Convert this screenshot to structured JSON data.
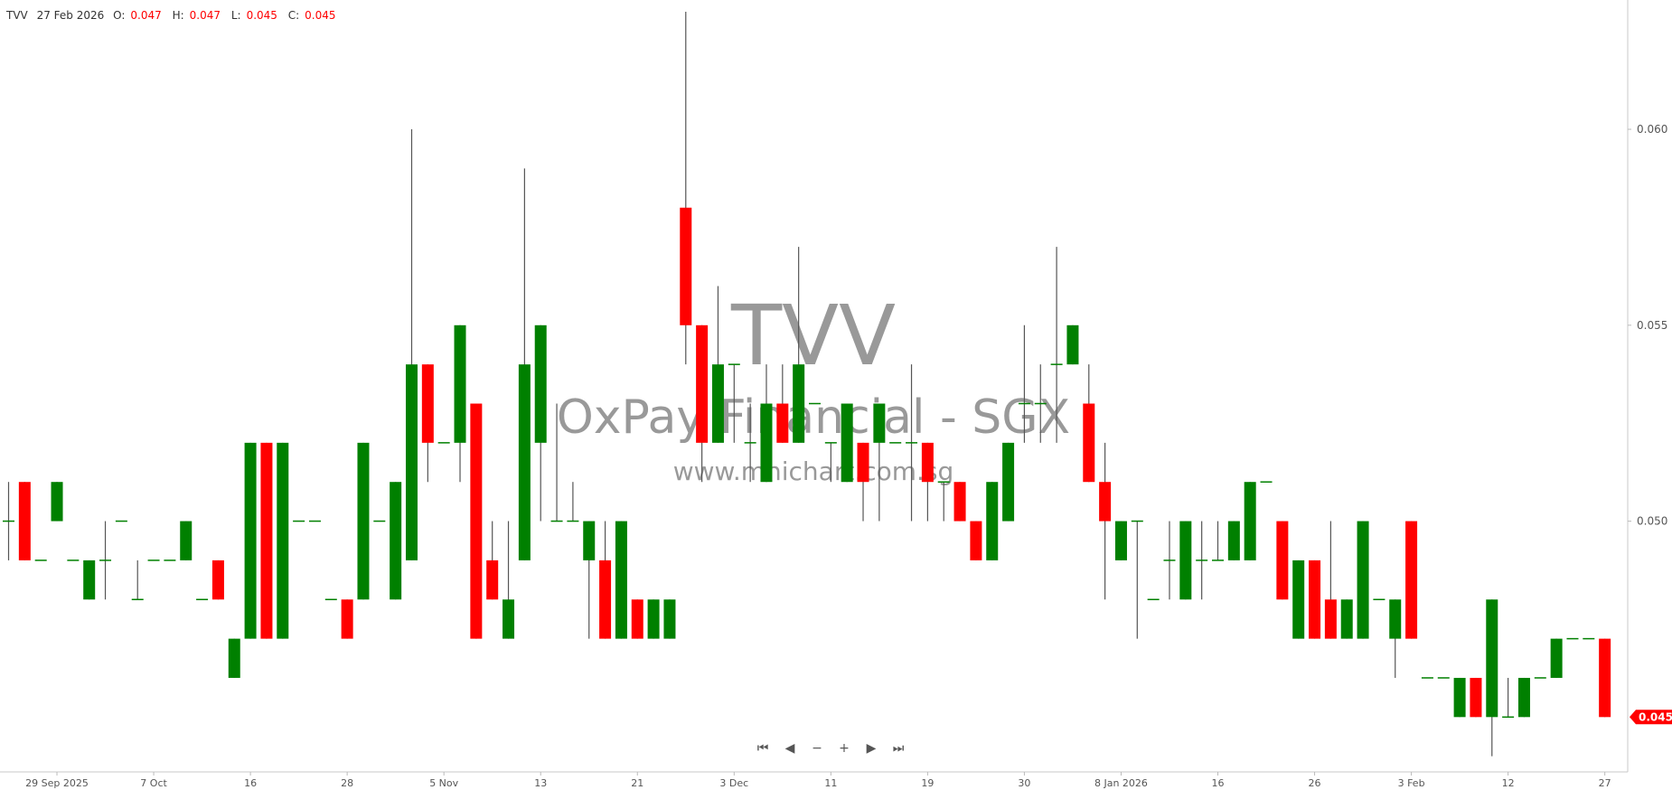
{
  "header": {
    "symbol": "TVV",
    "date": "27 Feb 2026",
    "o_label": "O:",
    "o": "0.047",
    "h_label": "H:",
    "h": "0.047",
    "l_label": "L:",
    "l": "0.045",
    "c_label": "C:",
    "c": "0.045"
  },
  "watermark": {
    "code": "TVV",
    "name": "OxPay Financial - SGX",
    "site": "www.mnichart.com.sg"
  },
  "nav": [
    {
      "icon": "skip-to-start-icon",
      "glyph": "⏮"
    },
    {
      "icon": "scroll-left-icon",
      "glyph": "◀"
    },
    {
      "icon": "zoom-out-icon",
      "glyph": "−"
    },
    {
      "icon": "zoom-in-icon",
      "glyph": "+"
    },
    {
      "icon": "scroll-right-icon",
      "glyph": "▶"
    },
    {
      "icon": "skip-to-end-icon",
      "glyph": "⏭"
    }
  ],
  "colors": {
    "up": "#008000",
    "down": "#ff0000",
    "wick": "#555555",
    "watermark": "#999999",
    "last_price": "#ff0000"
  },
  "chart_data": {
    "type": "candlestick",
    "ylim": [
      0.0436,
      0.0633
    ],
    "yticks": [
      "0.050",
      "0.055",
      "0.060"
    ],
    "last_price_label": "0.045",
    "grid": false,
    "xticks": [
      {
        "index": 3,
        "label": "29 Sep 2025"
      },
      {
        "index": 9,
        "label": "7 Oct"
      },
      {
        "index": 15,
        "label": "16"
      },
      {
        "index": 21,
        "label": "28"
      },
      {
        "index": 27,
        "label": "5 Nov"
      },
      {
        "index": 33,
        "label": "13"
      },
      {
        "index": 39,
        "label": "21"
      },
      {
        "index": 45,
        "label": "3 Dec"
      },
      {
        "index": 51,
        "label": "11"
      },
      {
        "index": 57,
        "label": "19"
      },
      {
        "index": 63,
        "label": "30"
      },
      {
        "index": 69,
        "label": "8 Jan 2026"
      },
      {
        "index": 75,
        "label": "16"
      },
      {
        "index": 81,
        "label": "26"
      },
      {
        "index": 87,
        "label": "3 Feb"
      },
      {
        "index": 93,
        "label": "12"
      },
      {
        "index": 99,
        "label": "27"
      }
    ],
    "ohlc": [
      [
        0.05,
        0.051,
        0.049,
        0.05
      ],
      [
        0.051,
        0.051,
        0.049,
        0.049
      ],
      [
        0.049,
        0.049,
        0.049,
        0.049
      ],
      [
        0.05,
        0.051,
        0.05,
        0.051
      ],
      [
        0.049,
        0.049,
        0.049,
        0.049
      ],
      [
        0.048,
        0.049,
        0.048,
        0.049
      ],
      [
        0.049,
        0.05,
        0.048,
        0.049
      ],
      [
        0.05,
        0.05,
        0.05,
        0.05
      ],
      [
        0.048,
        0.049,
        0.048,
        0.048
      ],
      [
        0.049,
        0.049,
        0.049,
        0.049
      ],
      [
        0.049,
        0.049,
        0.049,
        0.049
      ],
      [
        0.049,
        0.05,
        0.049,
        0.05
      ],
      [
        0.048,
        0.048,
        0.048,
        0.048
      ],
      [
        0.049,
        0.049,
        0.048,
        0.048
      ],
      [
        0.046,
        0.047,
        0.046,
        0.047
      ],
      [
        0.047,
        0.052,
        0.047,
        0.052
      ],
      [
        0.052,
        0.052,
        0.047,
        0.047
      ],
      [
        0.047,
        0.052,
        0.047,
        0.052
      ],
      [
        0.05,
        0.05,
        0.05,
        0.05
      ],
      [
        0.05,
        0.05,
        0.05,
        0.05
      ],
      [
        0.048,
        0.048,
        0.048,
        0.048
      ],
      [
        0.048,
        0.048,
        0.047,
        0.047
      ],
      [
        0.048,
        0.052,
        0.048,
        0.052
      ],
      [
        0.05,
        0.05,
        0.05,
        0.05
      ],
      [
        0.048,
        0.051,
        0.048,
        0.051
      ],
      [
        0.049,
        0.06,
        0.049,
        0.054
      ],
      [
        0.054,
        0.054,
        0.051,
        0.052
      ],
      [
        0.052,
        0.052,
        0.052,
        0.052
      ],
      [
        0.052,
        0.055,
        0.051,
        0.055
      ],
      [
        0.053,
        0.053,
        0.047,
        0.047
      ],
      [
        0.049,
        0.05,
        0.048,
        0.048
      ],
      [
        0.047,
        0.05,
        0.047,
        0.048
      ],
      [
        0.049,
        0.059,
        0.049,
        0.054
      ],
      [
        0.052,
        0.055,
        0.05,
        0.055
      ],
      [
        0.05,
        0.053,
        0.05,
        0.05
      ],
      [
        0.05,
        0.051,
        0.05,
        0.05
      ],
      [
        0.049,
        0.05,
        0.047,
        0.05
      ],
      [
        0.049,
        0.05,
        0.047,
        0.047
      ],
      [
        0.047,
        0.05,
        0.047,
        0.05
      ],
      [
        0.048,
        0.048,
        0.047,
        0.047
      ],
      [
        0.047,
        0.048,
        0.047,
        0.048
      ],
      [
        0.047,
        0.048,
        0.047,
        0.048
      ],
      [
        0.058,
        0.063,
        0.054,
        0.055
      ],
      [
        0.055,
        0.055,
        0.051,
        0.052
      ],
      [
        0.052,
        0.056,
        0.052,
        0.054
      ],
      [
        0.054,
        0.054,
        0.052,
        0.054
      ],
      [
        0.052,
        0.053,
        0.051,
        0.052
      ],
      [
        0.051,
        0.054,
        0.051,
        0.053
      ],
      [
        0.053,
        0.054,
        0.052,
        0.052
      ],
      [
        0.052,
        0.057,
        0.052,
        0.054
      ],
      [
        0.053,
        0.053,
        0.053,
        0.053
      ],
      [
        0.052,
        0.052,
        0.051,
        0.052
      ],
      [
        0.051,
        0.053,
        0.051,
        0.053
      ],
      [
        0.052,
        0.052,
        0.05,
        0.051
      ],
      [
        0.052,
        0.053,
        0.05,
        0.053
      ],
      [
        0.052,
        0.052,
        0.052,
        0.052
      ],
      [
        0.052,
        0.054,
        0.05,
        0.052
      ],
      [
        0.052,
        0.052,
        0.05,
        0.051
      ],
      [
        0.051,
        0.051,
        0.05,
        0.051
      ],
      [
        0.051,
        0.051,
        0.05,
        0.05
      ],
      [
        0.05,
        0.05,
        0.049,
        0.049
      ],
      [
        0.049,
        0.051,
        0.049,
        0.051
      ],
      [
        0.05,
        0.052,
        0.05,
        0.052
      ],
      [
        0.053,
        0.055,
        0.052,
        0.053
      ],
      [
        0.053,
        0.054,
        0.052,
        0.053
      ],
      [
        0.054,
        0.057,
        0.052,
        0.054
      ],
      [
        0.054,
        0.055,
        0.054,
        0.055
      ],
      [
        0.053,
        0.054,
        0.051,
        0.051
      ],
      [
        0.051,
        0.052,
        0.048,
        0.05
      ],
      [
        0.049,
        0.05,
        0.049,
        0.05
      ],
      [
        0.05,
        0.05,
        0.047,
        0.05
      ],
      [
        0.048,
        0.048,
        0.048,
        0.048
      ],
      [
        0.049,
        0.05,
        0.048,
        0.049
      ],
      [
        0.048,
        0.05,
        0.048,
        0.05
      ],
      [
        0.049,
        0.05,
        0.048,
        0.049
      ],
      [
        0.049,
        0.05,
        0.049,
        0.049
      ],
      [
        0.049,
        0.05,
        0.049,
        0.05
      ],
      [
        0.049,
        0.051,
        0.049,
        0.051
      ],
      [
        0.051,
        0.051,
        0.051,
        0.051
      ],
      [
        0.05,
        0.05,
        0.048,
        0.048
      ],
      [
        0.047,
        0.049,
        0.047,
        0.049
      ],
      [
        0.049,
        0.049,
        0.047,
        0.047
      ],
      [
        0.048,
        0.05,
        0.047,
        0.047
      ],
      [
        0.047,
        0.048,
        0.047,
        0.048
      ],
      [
        0.047,
        0.05,
        0.047,
        0.05
      ],
      [
        0.048,
        0.048,
        0.048,
        0.048
      ],
      [
        0.047,
        0.048,
        0.046,
        0.048
      ],
      [
        0.05,
        0.05,
        0.047,
        0.047
      ],
      [
        0.046,
        0.046,
        0.046,
        0.046
      ],
      [
        0.046,
        0.046,
        0.046,
        0.046
      ],
      [
        0.045,
        0.046,
        0.045,
        0.046
      ],
      [
        0.046,
        0.046,
        0.045,
        0.045
      ],
      [
        0.045,
        0.048,
        0.044,
        0.048
      ],
      [
        0.045,
        0.046,
        0.045,
        0.045
      ],
      [
        0.045,
        0.046,
        0.045,
        0.046
      ],
      [
        0.046,
        0.046,
        0.046,
        0.046
      ],
      [
        0.046,
        0.047,
        0.046,
        0.047
      ],
      [
        0.047,
        0.047,
        0.047,
        0.047
      ],
      [
        0.047,
        0.047,
        0.047,
        0.047
      ],
      [
        0.047,
        0.047,
        0.045,
        0.045
      ]
    ]
  }
}
